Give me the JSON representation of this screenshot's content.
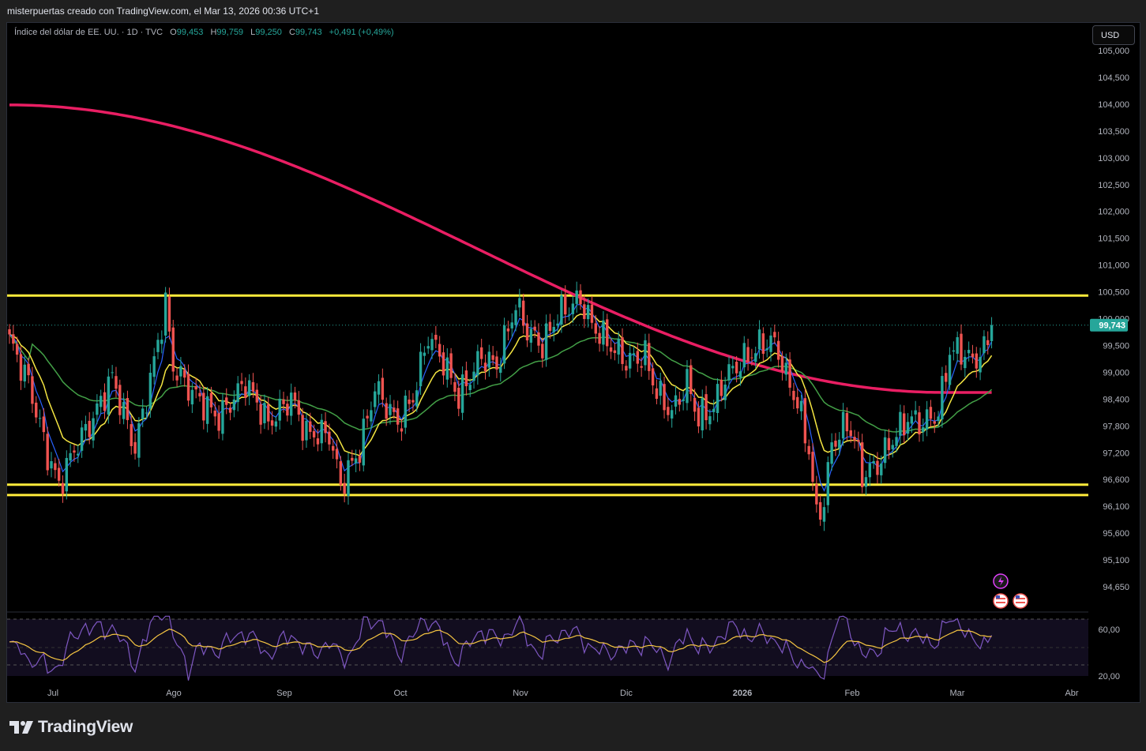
{
  "header": {
    "attribution": "misterpuertas creado con TradingView.com, el Mar 13, 2026 00:36 UTC+1"
  },
  "legend": {
    "symbol": "Índice del dólar de EE. UU. · 1D · TVC",
    "open_label": "O",
    "open": "99,453",
    "high_label": "H",
    "high": "99,759",
    "low_label": "L",
    "low": "99,250",
    "close_label": "C",
    "close": "99,743",
    "change": "+0,491 (+0,49%)"
  },
  "currency_button": "USD",
  "price_axis": {
    "ticks": [
      "105,000",
      "104,500",
      "104,000",
      "103,500",
      "103,000",
      "102,500",
      "102,000",
      "101,500",
      "101,000",
      "100,500",
      "100,000",
      "99,500",
      "99,000",
      "98,400",
      "97,800",
      "97,200",
      "96,600",
      "96,100",
      "95,600",
      "95,100",
      "94,650"
    ],
    "last_price": "99,743"
  },
  "rsi_axis": {
    "ticks": [
      "60,00",
      "20,00"
    ]
  },
  "time_axis": {
    "ticks": [
      "Jul",
      "Ago",
      "Sep",
      "Oct",
      "Nov",
      "Dic",
      "2026",
      "Feb",
      "Mar",
      "Abr"
    ]
  },
  "colors": {
    "up": "#26a69a",
    "down": "#ef5350",
    "ma_fast": "#2962ff",
    "ma_mid": "#f5e642",
    "ma_slow": "#43a047",
    "ma_long": "#e91e63",
    "levels": "#ffeb3b",
    "rsi": "#7e57c2",
    "rsi_ma": "#f5c542"
  },
  "chart_data": {
    "type": "candlestick",
    "title": "Índice del dólar de EE. UU.",
    "interval": "1D",
    "ylim": [
      94.4,
      105.2
    ],
    "horizontal_levels": [
      100.27,
      96.62,
      96.42
    ],
    "anchors": [
      {
        "i": 0,
        "v": 99.4
      },
      {
        "i": 5,
        "v": 98.6
      },
      {
        "i": 10,
        "v": 97.2
      },
      {
        "i": 13,
        "v": 96.6
      },
      {
        "i": 17,
        "v": 97.3
      },
      {
        "i": 22,
        "v": 97.9
      },
      {
        "i": 27,
        "v": 98.7
      },
      {
        "i": 33,
        "v": 97.3
      },
      {
        "i": 38,
        "v": 99.0
      },
      {
        "i": 41,
        "v": 100.1
      },
      {
        "i": 43,
        "v": 98.9
      },
      {
        "i": 48,
        "v": 98.4
      },
      {
        "i": 55,
        "v": 97.9
      },
      {
        "i": 62,
        "v": 98.6
      },
      {
        "i": 68,
        "v": 97.8
      },
      {
        "i": 74,
        "v": 98.3
      },
      {
        "i": 78,
        "v": 97.6
      },
      {
        "i": 84,
        "v": 97.6
      },
      {
        "i": 87,
        "v": 96.6
      },
      {
        "i": 92,
        "v": 97.3
      },
      {
        "i": 96,
        "v": 98.5
      },
      {
        "i": 102,
        "v": 97.8
      },
      {
        "i": 106,
        "v": 98.3
      },
      {
        "i": 110,
        "v": 99.5
      },
      {
        "i": 114,
        "v": 99.0
      },
      {
        "i": 118,
        "v": 98.3
      },
      {
        "i": 124,
        "v": 99.1
      },
      {
        "i": 128,
        "v": 98.9
      },
      {
        "i": 133,
        "v": 100.1
      },
      {
        "i": 136,
        "v": 99.6
      },
      {
        "i": 140,
        "v": 99.3
      },
      {
        "i": 144,
        "v": 99.9
      },
      {
        "i": 150,
        "v": 100.2
      },
      {
        "i": 153,
        "v": 99.7
      },
      {
        "i": 158,
        "v": 99.3
      },
      {
        "i": 162,
        "v": 99.0
      },
      {
        "i": 167,
        "v": 99.1
      },
      {
        "i": 170,
        "v": 98.4
      },
      {
        "i": 174,
        "v": 98.0
      },
      {
        "i": 178,
        "v": 98.6
      },
      {
        "i": 181,
        "v": 97.9
      },
      {
        "i": 185,
        "v": 98.1
      },
      {
        "i": 188,
        "v": 98.7
      },
      {
        "i": 194,
        "v": 99.1
      },
      {
        "i": 197,
        "v": 99.3
      },
      {
        "i": 200,
        "v": 99.4
      },
      {
        "i": 202,
        "v": 99.2
      },
      {
        "i": 204,
        "v": 98.7
      },
      {
        "i": 207,
        "v": 98.2
      },
      {
        "i": 210,
        "v": 97.3
      },
      {
        "i": 212,
        "v": 96.0
      },
      {
        "i": 214,
        "v": 96.3
      },
      {
        "i": 216,
        "v": 97.4
      },
      {
        "i": 220,
        "v": 97.8
      },
      {
        "i": 222,
        "v": 97.5
      },
      {
        "i": 224,
        "v": 96.8
      },
      {
        "i": 228,
        "v": 97.0
      },
      {
        "i": 232,
        "v": 97.5
      },
      {
        "i": 236,
        "v": 97.9
      },
      {
        "i": 240,
        "v": 97.8
      },
      {
        "i": 244,
        "v": 98.0
      },
      {
        "i": 247,
        "v": 99.2
      },
      {
        "i": 250,
        "v": 99.2
      },
      {
        "i": 253,
        "v": 99.0
      },
      {
        "i": 256,
        "v": 99.2
      },
      {
        "i": 258,
        "v": 99.7
      }
    ],
    "ma_long_start": 103.95
  }
}
